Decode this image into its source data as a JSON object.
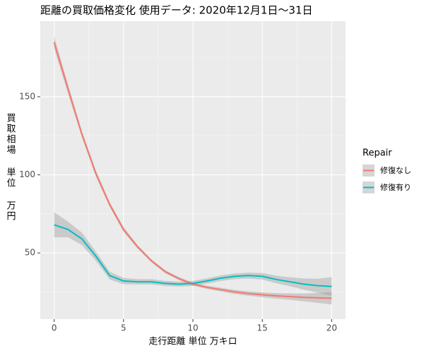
{
  "chart_data": {
    "type": "smooth",
    "title": "距離の買取価格変化 使用データ: 2020年12月1日～31日",
    "x_label": "走行距離 単位 万キロ",
    "y_label": "買取相場 単位 万円",
    "legend_title": "Repair",
    "x": [
      0,
      1,
      2,
      3,
      4,
      5,
      6,
      7,
      8,
      9,
      10,
      11,
      12,
      13,
      14,
      15,
      16,
      17,
      18,
      19,
      20
    ],
    "series": [
      {
        "name": "修復なし",
        "color": "#F8766D",
        "values": [
          184.8,
          155,
          126,
          101,
          81,
          65,
          54,
          45,
          38,
          33.5,
          30,
          28,
          26.5,
          25,
          24,
          23.2,
          22.5,
          22,
          21.5,
          21.2,
          21
        ],
        "lower": [
          181,
          152,
          124,
          99,
          79.5,
          63.5,
          52.8,
          44,
          37,
          32.5,
          29,
          27,
          25.3,
          23.7,
          22.6,
          21.6,
          20.7,
          19.9,
          19,
          18,
          17
        ],
        "upper": [
          188.6,
          158,
          128,
          103,
          82.5,
          66.5,
          55.2,
          46,
          39,
          34.5,
          31,
          29,
          27.7,
          26.3,
          25.4,
          24.8,
          24.3,
          24.1,
          24,
          24.4,
          25
        ]
      },
      {
        "name": "修復有り",
        "color": "#00BFC4",
        "values": [
          68,
          65,
          59,
          48,
          35.5,
          32,
          31.5,
          31.5,
          30.5,
          30,
          30.5,
          32,
          33.8,
          35,
          35.5,
          35,
          33,
          31.5,
          30,
          29,
          28.5
        ],
        "lower": [
          60,
          60,
          55,
          45,
          33,
          30,
          29.8,
          29.8,
          28.9,
          28.4,
          28.9,
          30.3,
          32,
          33.2,
          33.6,
          32.9,
          30.6,
          28.6,
          26.4,
          24.5,
          22.5
        ],
        "upper": [
          76,
          70,
          63,
          51,
          38,
          34,
          33.2,
          33.2,
          32.1,
          31.6,
          32.1,
          33.7,
          35.6,
          36.8,
          37.4,
          37.1,
          35.4,
          34.4,
          33.6,
          33.5,
          34.5
        ]
      }
    ],
    "band_color": "#999999",
    "xlim": [
      -1,
      21
    ],
    "ylim": [
      7.6,
      198.4
    ],
    "xticks": [
      0,
      5,
      10,
      15,
      20
    ],
    "yticks": [
      50,
      100,
      150
    ],
    "grid": true
  }
}
